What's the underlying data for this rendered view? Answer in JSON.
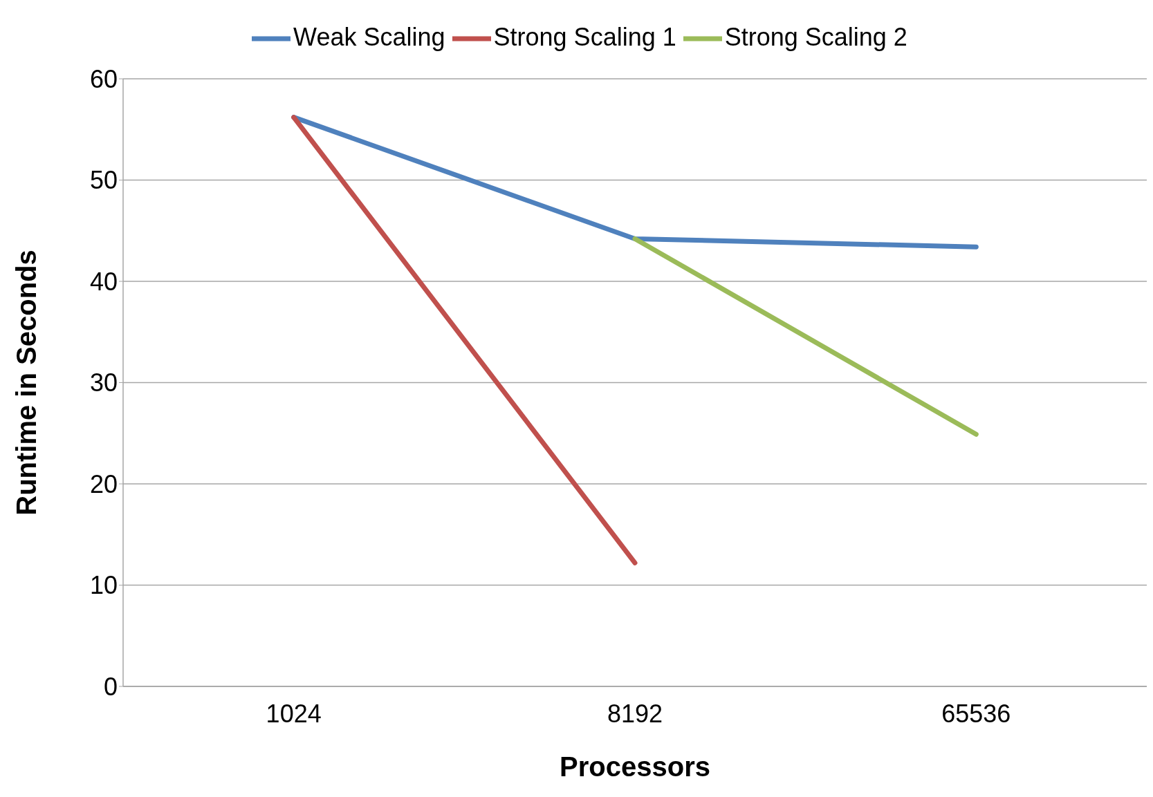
{
  "chart_data": {
    "type": "line",
    "xlabel": "Processors",
    "ylabel": "Runtime in Seconds",
    "categories": [
      "1024",
      "8192",
      "65536"
    ],
    "series": [
      {
        "name": "Weak Scaling",
        "color": "#4f81bd",
        "values": [
          56.2,
          44.2,
          43.4
        ]
      },
      {
        "name": "Strong Scaling 1",
        "color": "#c0504d",
        "values": [
          56.2,
          12.2,
          null
        ]
      },
      {
        "name": "Strong Scaling 2",
        "color": "#9bbb59",
        "values": [
          null,
          44.2,
          24.9
        ]
      }
    ],
    "ylim": [
      0,
      60
    ],
    "yticks": [
      0,
      10,
      20,
      30,
      40,
      50,
      60
    ],
    "grid": "y",
    "legend": "top",
    "marker": "none",
    "line_style": "solid"
  }
}
